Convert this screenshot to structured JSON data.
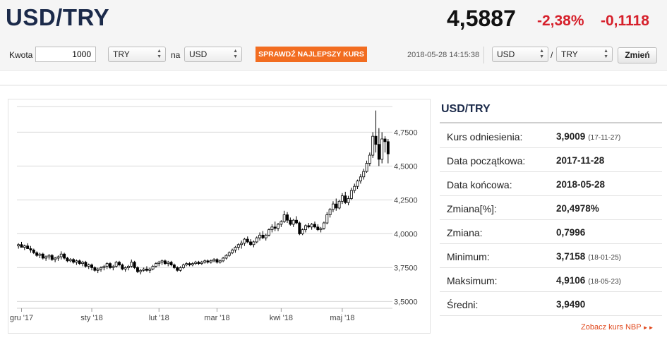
{
  "header": {
    "pair": "USD/TRY",
    "rate": "4,5887",
    "change_pct": "-2,38%",
    "change_abs": "-0,1118"
  },
  "converter": {
    "amount_label": "Kwota",
    "amount_value": "1000",
    "from_currency": "TRY",
    "to_label": "na",
    "to_currency": "USD",
    "check_button": "SPRAWDŹ NAJLEPSZY KURS",
    "timestamp": "2018-05-28 14:15:38",
    "pair_base": "USD",
    "pair_separator": "/",
    "pair_quote": "TRY",
    "swap_button": "Zmień"
  },
  "colors": {
    "title": "#1b2a4a",
    "negative": "#d6202b",
    "button": "#f26d21",
    "link": "#e0461a"
  },
  "panel": {
    "title": "USD/TRY",
    "rows": [
      {
        "label": "Kurs odniesienia:",
        "value": "3,9009",
        "date": "(17-11-27)"
      },
      {
        "label": "Data początkowa:",
        "value": "2017-11-28",
        "date": ""
      },
      {
        "label": "Data końcowa:",
        "value": "2018-05-28",
        "date": ""
      },
      {
        "label": "Zmiana[%]:",
        "value": "20,4978%",
        "date": ""
      },
      {
        "label": "Zmiana:",
        "value": "0,7996",
        "date": ""
      },
      {
        "label": "Minimum:",
        "value": "3,7158",
        "date": "(18-01-25)"
      },
      {
        "label": "Maksimum:",
        "value": "4,9106",
        "date": "(18-05-23)"
      },
      {
        "label": "Średni:",
        "value": "3,9490",
        "date": ""
      }
    ],
    "nbp_link": "Zobacz kurs NBP",
    "nbp_link_icon": "double-triangle-right-icon"
  },
  "chart_data": {
    "type": "candlestick",
    "y_range": [
      3.45,
      4.95
    ],
    "y_ticks": [
      3.5,
      3.75,
      4.0,
      4.25,
      4.5,
      4.75
    ],
    "y_tick_labels": [
      "3,5000",
      "3,7500",
      "4,0000",
      "4,2500",
      "4,5000",
      "4,7500"
    ],
    "x_tick_labels": [
      "gru '17",
      "sty '18",
      "lut '18",
      "mar '18",
      "kwi '18",
      "maj '18"
    ],
    "x_tick_positions": [
      1.5,
      24.5,
      46.5,
      65.5,
      86.5,
      106.5
    ],
    "up_color": "#ffffff",
    "down_color": "#000000",
    "grid": true,
    "candles": [
      [
        3.91,
        3.93,
        3.89,
        3.92
      ],
      [
        3.92,
        3.94,
        3.9,
        3.9
      ],
      [
        3.9,
        3.92,
        3.88,
        3.91
      ],
      [
        3.91,
        3.93,
        3.89,
        3.89
      ],
      [
        3.89,
        3.91,
        3.86,
        3.88
      ],
      [
        3.88,
        3.89,
        3.85,
        3.86
      ],
      [
        3.86,
        3.87,
        3.83,
        3.84
      ],
      [
        3.84,
        3.86,
        3.82,
        3.85
      ],
      [
        3.85,
        3.86,
        3.81,
        3.82
      ],
      [
        3.82,
        3.84,
        3.8,
        3.83
      ],
      [
        3.83,
        3.85,
        3.81,
        3.84
      ],
      [
        3.84,
        3.85,
        3.8,
        3.81
      ],
      [
        3.81,
        3.83,
        3.79,
        3.82
      ],
      [
        3.82,
        3.84,
        3.8,
        3.83
      ],
      [
        3.83,
        3.87,
        3.81,
        3.85
      ],
      [
        3.85,
        3.86,
        3.81,
        3.82
      ],
      [
        3.82,
        3.83,
        3.79,
        3.8
      ],
      [
        3.8,
        3.82,
        3.79,
        3.81
      ],
      [
        3.81,
        3.82,
        3.78,
        3.79
      ],
      [
        3.79,
        3.81,
        3.77,
        3.8
      ],
      [
        3.8,
        3.81,
        3.77,
        3.78
      ],
      [
        3.78,
        3.8,
        3.76,
        3.79
      ],
      [
        3.79,
        3.8,
        3.75,
        3.76
      ],
      [
        3.76,
        3.78,
        3.74,
        3.77
      ],
      [
        3.77,
        3.78,
        3.73,
        3.75
      ],
      [
        3.75,
        3.76,
        3.72,
        3.73
      ],
      [
        3.73,
        3.75,
        3.71,
        3.74
      ],
      [
        3.74,
        3.76,
        3.72,
        3.75
      ],
      [
        3.75,
        3.77,
        3.73,
        3.76
      ],
      [
        3.76,
        3.79,
        3.74,
        3.78
      ],
      [
        3.78,
        3.79,
        3.74,
        3.75
      ],
      [
        3.75,
        3.77,
        3.73,
        3.76
      ],
      [
        3.76,
        3.8,
        3.75,
        3.79
      ],
      [
        3.79,
        3.8,
        3.76,
        3.77
      ],
      [
        3.77,
        3.78,
        3.73,
        3.74
      ],
      [
        3.74,
        3.76,
        3.72,
        3.75
      ],
      [
        3.75,
        3.77,
        3.73,
        3.76
      ],
      [
        3.76,
        3.81,
        3.75,
        3.79
      ],
      [
        3.79,
        3.8,
        3.74,
        3.75
      ],
      [
        3.75,
        3.76,
        3.71,
        3.72
      ],
      [
        3.72,
        3.74,
        3.7,
        3.73
      ],
      [
        3.73,
        3.75,
        3.72,
        3.74
      ],
      [
        3.74,
        3.76,
        3.72,
        3.73
      ],
      [
        3.73,
        3.75,
        3.71,
        3.74
      ],
      [
        3.74,
        3.77,
        3.73,
        3.76
      ],
      [
        3.76,
        3.79,
        3.75,
        3.78
      ],
      [
        3.78,
        3.8,
        3.76,
        3.79
      ],
      [
        3.79,
        3.81,
        3.77,
        3.8
      ],
      [
        3.8,
        3.81,
        3.77,
        3.78
      ],
      [
        3.78,
        3.8,
        3.76,
        3.79
      ],
      [
        3.79,
        3.8,
        3.76,
        3.77
      ],
      [
        3.77,
        3.78,
        3.74,
        3.75
      ],
      [
        3.75,
        3.76,
        3.72,
        3.73
      ],
      [
        3.73,
        3.76,
        3.72,
        3.75
      ],
      [
        3.75,
        3.78,
        3.74,
        3.77
      ],
      [
        3.77,
        3.79,
        3.76,
        3.78
      ],
      [
        3.78,
        3.79,
        3.76,
        3.77
      ],
      [
        3.77,
        3.79,
        3.76,
        3.78
      ],
      [
        3.78,
        3.8,
        3.77,
        3.79
      ],
      [
        3.79,
        3.8,
        3.77,
        3.78
      ],
      [
        3.78,
        3.8,
        3.77,
        3.79
      ],
      [
        3.79,
        3.81,
        3.78,
        3.8
      ],
      [
        3.8,
        3.81,
        3.78,
        3.79
      ],
      [
        3.79,
        3.81,
        3.78,
        3.8
      ],
      [
        3.8,
        3.82,
        3.79,
        3.81
      ],
      [
        3.81,
        3.82,
        3.78,
        3.79
      ],
      [
        3.79,
        3.81,
        3.78,
        3.8
      ],
      [
        3.8,
        3.83,
        3.79,
        3.82
      ],
      [
        3.82,
        3.85,
        3.81,
        3.84
      ],
      [
        3.84,
        3.87,
        3.83,
        3.86
      ],
      [
        3.86,
        3.89,
        3.85,
        3.88
      ],
      [
        3.88,
        3.91,
        3.86,
        3.9
      ],
      [
        3.9,
        3.93,
        3.88,
        3.92
      ],
      [
        3.92,
        3.95,
        3.89,
        3.93
      ],
      [
        3.93,
        3.97,
        3.91,
        3.96
      ],
      [
        3.96,
        3.98,
        3.93,
        3.94
      ],
      [
        3.94,
        3.96,
        3.91,
        3.92
      ],
      [
        3.92,
        3.95,
        3.9,
        3.94
      ],
      [
        3.94,
        3.98,
        3.93,
        3.97
      ],
      [
        3.97,
        4.01,
        3.95,
        3.99
      ],
      [
        3.99,
        4.02,
        3.96,
        3.97
      ],
      [
        3.97,
        4.0,
        3.95,
        3.99
      ],
      [
        3.99,
        4.04,
        3.98,
        4.03
      ],
      [
        4.03,
        4.07,
        4.01,
        4.05
      ],
      [
        4.05,
        4.09,
        4.02,
        4.04
      ],
      [
        4.04,
        4.08,
        4.02,
        4.07
      ],
      [
        4.07,
        4.1,
        4.05,
        4.09
      ],
      [
        4.09,
        4.17,
        4.08,
        4.14
      ],
      [
        4.14,
        4.16,
        4.08,
        4.1
      ],
      [
        4.1,
        4.12,
        4.06,
        4.07
      ],
      [
        4.07,
        4.11,
        4.05,
        4.1
      ],
      [
        4.1,
        4.13,
        4.07,
        4.08
      ],
      [
        4.08,
        4.09,
        3.99,
        4.0
      ],
      [
        4.0,
        4.04,
        3.99,
        4.03
      ],
      [
        4.03,
        4.07,
        4.01,
        4.06
      ],
      [
        4.06,
        4.08,
        4.04,
        4.05
      ],
      [
        4.05,
        4.08,
        4.03,
        4.07
      ],
      [
        4.07,
        4.09,
        4.04,
        4.05
      ],
      [
        4.05,
        4.07,
        4.02,
        4.03
      ],
      [
        4.03,
        4.05,
        4.01,
        4.04
      ],
      [
        4.04,
        4.09,
        4.03,
        4.08
      ],
      [
        4.08,
        4.16,
        4.07,
        4.14
      ],
      [
        4.14,
        4.19,
        4.12,
        4.18
      ],
      [
        4.18,
        4.24,
        4.16,
        4.22
      ],
      [
        4.22,
        4.26,
        4.17,
        4.19
      ],
      [
        4.19,
        4.25,
        4.18,
        4.24
      ],
      [
        4.24,
        4.3,
        4.22,
        4.28
      ],
      [
        4.28,
        4.31,
        4.22,
        4.23
      ],
      [
        4.23,
        4.28,
        4.21,
        4.26
      ],
      [
        4.26,
        4.34,
        4.25,
        4.32
      ],
      [
        4.32,
        4.37,
        4.3,
        4.35
      ],
      [
        4.35,
        4.4,
        4.33,
        4.39
      ],
      [
        4.39,
        4.44,
        4.37,
        4.42
      ],
      [
        4.42,
        4.48,
        4.4,
        4.46
      ],
      [
        4.46,
        4.54,
        4.45,
        4.52
      ],
      [
        4.52,
        4.6,
        4.5,
        4.58
      ],
      [
        4.58,
        4.75,
        4.56,
        4.72
      ],
      [
        4.72,
        4.91,
        4.6,
        4.66
      ],
      [
        4.66,
        4.78,
        4.5,
        4.55
      ],
      [
        4.55,
        4.75,
        4.52,
        4.7
      ],
      [
        4.7,
        4.72,
        4.6,
        4.68
      ],
      [
        4.68,
        4.7,
        4.52,
        4.59
      ]
    ]
  }
}
